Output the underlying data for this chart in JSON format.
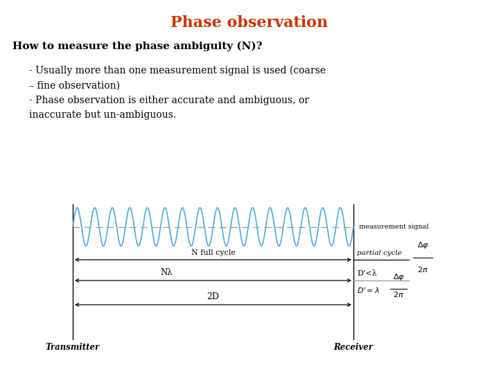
{
  "title": "Phase observation",
  "title_color": "#CC3300",
  "title_fontsize": 16,
  "background_color": "#FFFFFF",
  "heading": "How to measure the phase ambiguity (N)?",
  "bullet1": "- Usually more than one measurement signal is used (coarse\n– fine observation)\n- Phase observation is either accurate and ambiguous, or\ninaccurate but un-ambiguous.",
  "wave_color": "#4AABDB",
  "wave_cycles": 16,
  "dashed_color": "#999999",
  "measurement_signal_label": "measurement signal",
  "n_full_cycle_label": "N full cycle",
  "partial_cycle_label": "partial cycle",
  "n_lambda_label": "Nλ",
  "d_prime_less_label": "D’<λ",
  "two_d_label": "2D",
  "transmitter_label": "Transmitter",
  "receiver_label": "Receiver"
}
